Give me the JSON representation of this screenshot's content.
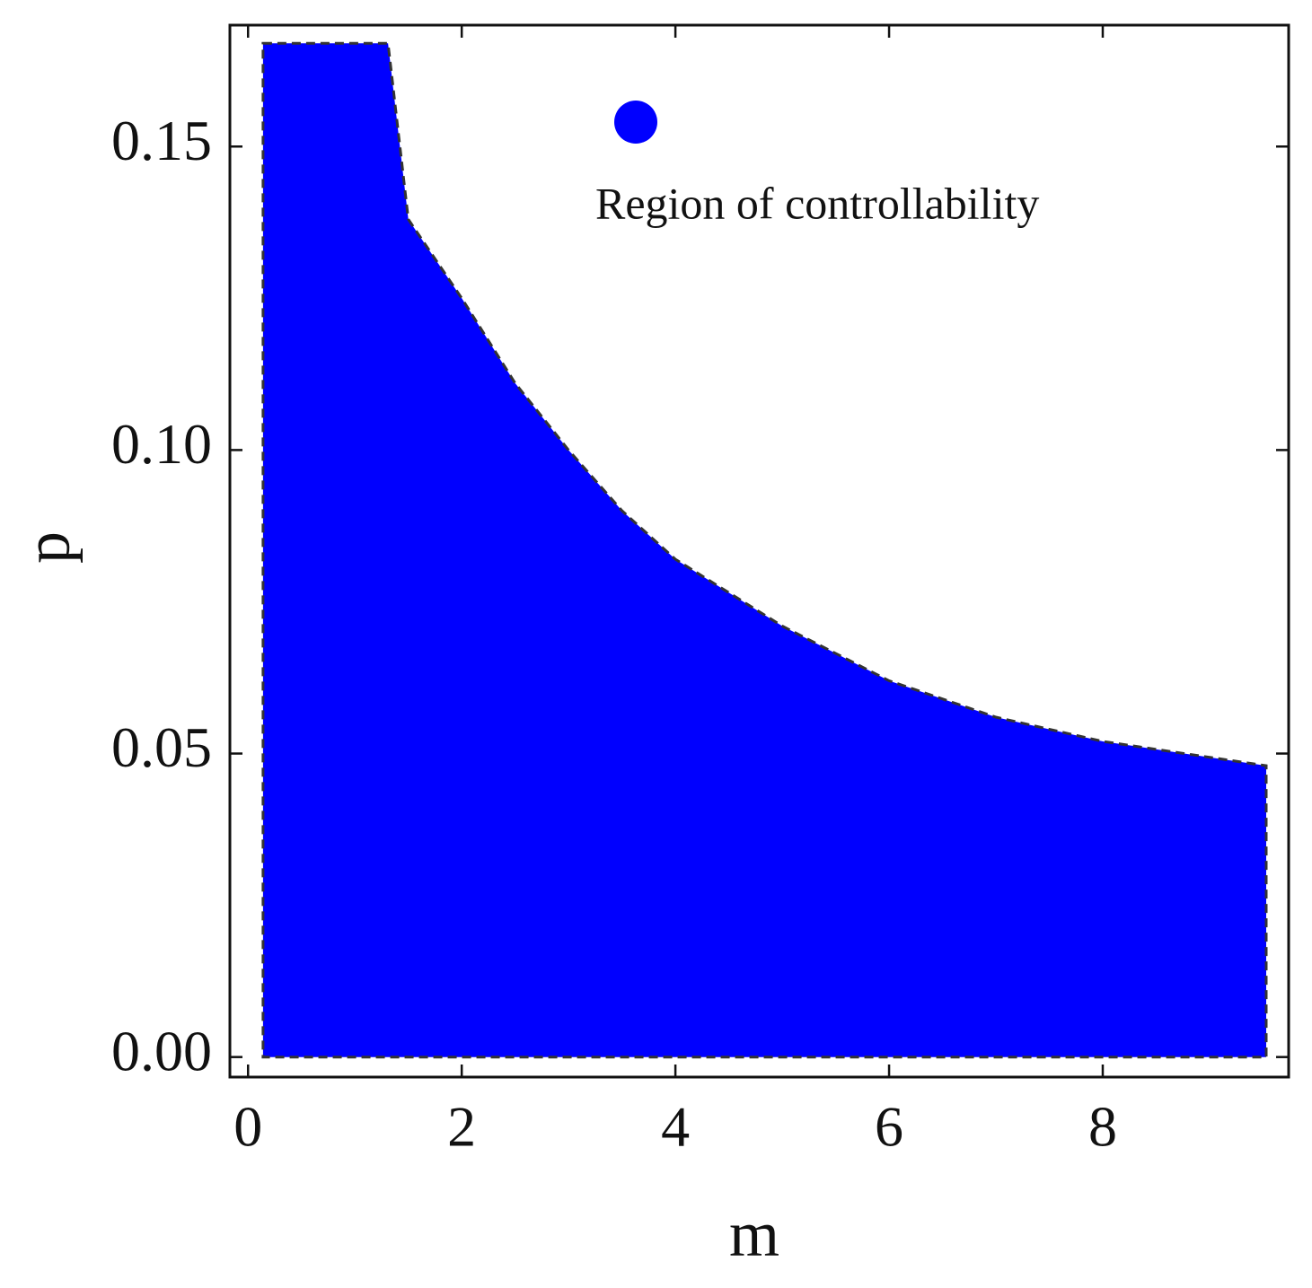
{
  "chart_data": {
    "type": "area",
    "xlabel": "m",
    "ylabel": "p",
    "x": [
      0.14,
      1.31,
      1.5,
      2,
      2.5,
      3,
      3.5,
      4,
      5,
      6,
      7,
      8,
      9.53
    ],
    "series": [
      {
        "name": "Region of controllability",
        "color": "#0000ff",
        "values": [
          0.167,
          0.167,
          0.138,
          0.125,
          0.111,
          0.1,
          0.09,
          0.082,
          0.071,
          0.062,
          0.056,
          0.052,
          0.048
        ]
      }
    ],
    "xlim": [
      -0.17,
      9.74
    ],
    "ylim": [
      -0.0033,
      0.17
    ],
    "xticks": [
      0,
      2,
      4,
      6,
      8
    ],
    "yticks": [
      {
        "value": 0,
        "label": "0.00"
      },
      {
        "value": 0.05,
        "label": "0.05"
      },
      {
        "value": 0.1,
        "label": "0.10"
      },
      {
        "value": 0.15,
        "label": "0.15"
      }
    ],
    "legend": "top"
  }
}
